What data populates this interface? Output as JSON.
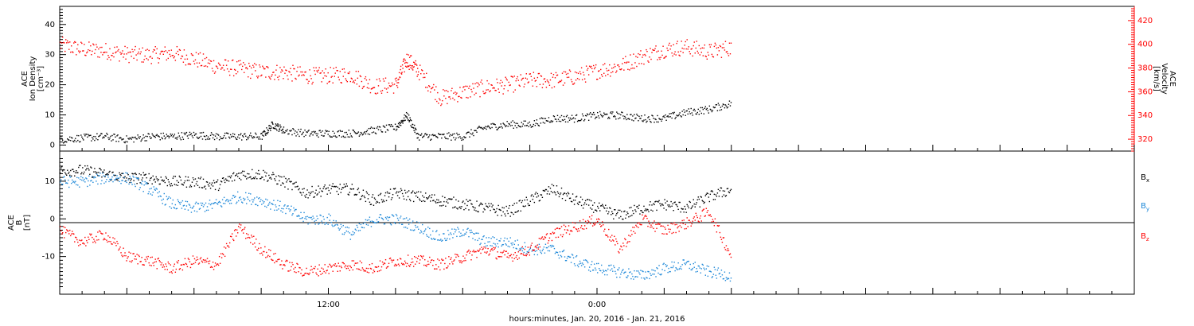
{
  "chart_data": [
    {
      "type": "scatter",
      "panel": "top",
      "ylabel_left": [
        "ACE",
        "Ion Density",
        "[cm⁻³]"
      ],
      "ylabel_right": [
        "ACE",
        "Velocity",
        "[km/s]"
      ],
      "ylim_left": [
        -2,
        46
      ],
      "ylim_right": [
        310,
        432
      ],
      "yticks_left": [
        "0",
        "10",
        "20",
        "30",
        "40"
      ],
      "yticks_right": [
        "320",
        "340",
        "360",
        "380",
        "400",
        "420"
      ],
      "xlim_hours": [
        0,
        48
      ],
      "colors": {
        "density": "#000000",
        "velocity": "#ff0000"
      },
      "series": [
        {
          "name": "Ion Density",
          "axis": "left",
          "color": "#000000",
          "x_hours": [
            0,
            1,
            2,
            3,
            4,
            5,
            6,
            7,
            8,
            9,
            9.5,
            10,
            11,
            12,
            13,
            14,
            15,
            15.5,
            16,
            17,
            18,
            19,
            20,
            21,
            22,
            23,
            24,
            25,
            26,
            27,
            28,
            29,
            30
          ],
          "y": [
            2,
            2.5,
            3,
            2,
            3,
            3,
            3.5,
            3,
            3,
            3,
            7,
            5,
            4,
            4,
            4,
            5,
            6,
            10,
            3,
            3,
            3,
            6,
            7,
            7,
            9,
            9,
            10,
            10,
            9,
            9,
            11,
            12,
            14
          ]
        },
        {
          "name": "Velocity",
          "axis": "right",
          "color": "#ff0000",
          "x_hours": [
            0,
            1,
            2,
            3,
            4,
            5,
            6,
            7,
            8,
            9,
            10,
            11,
            12,
            13,
            14,
            15,
            15.5,
            16,
            17,
            18,
            19,
            20,
            21,
            22,
            23,
            24,
            25,
            26,
            27,
            28,
            29,
            30
          ],
          "y": [
            400,
            396,
            395,
            392,
            391,
            393,
            388,
            382,
            380,
            377,
            377,
            374,
            374,
            375,
            365,
            366,
            388,
            378,
            355,
            360,
            364,
            366,
            370,
            370,
            373,
            378,
            382,
            390,
            396,
            398,
            394,
            398
          ]
        }
      ]
    },
    {
      "type": "scatter",
      "panel": "bottom",
      "ylabel_left": [
        "ACE",
        "B",
        "[nT]"
      ],
      "ylim": [
        -20,
        18
      ],
      "yticks": [
        "-10",
        "0",
        "10"
      ],
      "xlim_hours": [
        0,
        48
      ],
      "xticks": [
        "12:00",
        "0:00"
      ],
      "xtick_hours": [
        12,
        24
      ],
      "xlabel": "hours:minutes, Jan. 20, 2016 - Jan. 21, 2016",
      "legend": [
        "Bx",
        "By",
        "Bz"
      ],
      "legend_position": "right",
      "series": [
        {
          "name": "Bx",
          "color": "#000000",
          "x_hours": [
            0,
            1,
            2,
            3,
            4,
            5,
            6,
            7,
            8,
            9,
            10,
            11,
            12,
            13,
            14,
            15,
            16,
            17,
            18,
            19,
            20,
            21,
            22,
            23,
            24,
            25,
            26,
            27,
            28,
            29,
            30
          ],
          "y": [
            13,
            13,
            12,
            11,
            11,
            10,
            10,
            9,
            12,
            12,
            10,
            7,
            8,
            8,
            5,
            7,
            6,
            5,
            4,
            3,
            2,
            5,
            8,
            5,
            3,
            1,
            3,
            4,
            3,
            6,
            8
          ]
        },
        {
          "name": "By",
          "color": "#1e88d8",
          "x_hours": [
            0,
            1,
            2,
            3,
            4,
            5,
            6,
            7,
            8,
            9,
            10,
            11,
            12,
            13,
            14,
            15,
            16,
            17,
            18,
            19,
            20,
            21,
            22,
            23,
            24,
            25,
            26,
            27,
            28,
            29,
            30
          ],
          "y": [
            10,
            10,
            11,
            11,
            8,
            4,
            3,
            4,
            6,
            5,
            3,
            0,
            0,
            -4,
            0,
            0,
            -2,
            -5,
            -3,
            -6,
            -6,
            -8,
            -8,
            -11,
            -13,
            -14,
            -15,
            -13,
            -12,
            -14,
            -15
          ]
        },
        {
          "name": "Bz",
          "color": "#ff0000",
          "x_hours": [
            0,
            1,
            2,
            3,
            4,
            5,
            6,
            7,
            8,
            9,
            10,
            11,
            12,
            13,
            14,
            15,
            16,
            17,
            18,
            19,
            20,
            21,
            22,
            23,
            24,
            25,
            26,
            27,
            28,
            29,
            30
          ],
          "y": [
            -3,
            -6,
            -4,
            -10,
            -11,
            -13,
            -11,
            -12,
            -2,
            -8,
            -12,
            -14,
            -13,
            -12,
            -13,
            -11,
            -11,
            -12,
            -10,
            -8,
            -10,
            -8,
            -4,
            -2,
            0,
            -8,
            0,
            -3,
            -1,
            2,
            -10
          ]
        }
      ]
    }
  ],
  "labels": {
    "legend_bx": "B",
    "legend_bx_sub": "x",
    "legend_by": "B",
    "legend_by_sub": "y",
    "legend_bz": "B",
    "legend_bz_sub": "z"
  }
}
